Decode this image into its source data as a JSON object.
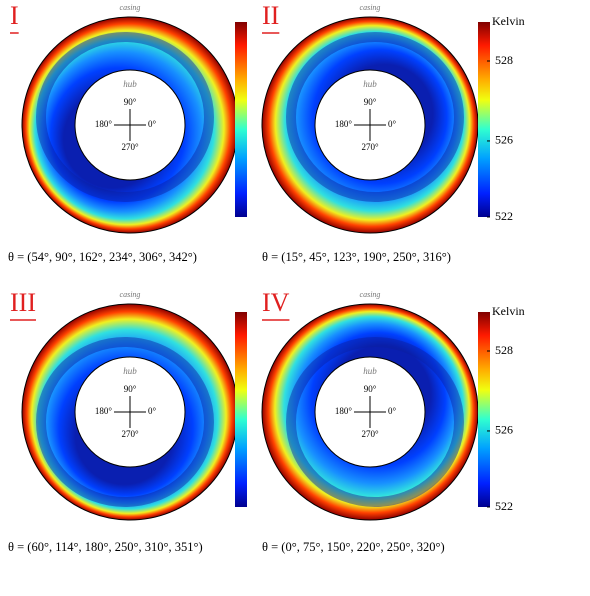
{
  "panels": [
    {
      "label": "I",
      "casing": "casing",
      "hub": "hub",
      "angles": [
        "90°",
        "180°",
        "0°",
        "270°"
      ],
      "caption": "θ = (54°, 90°, 162°, 234°, 306°, 342°)"
    },
    {
      "label": "II",
      "casing": "casing",
      "hub": "hub",
      "angles": [
        "90°",
        "180°",
        "0°",
        "270°"
      ],
      "caption": "θ = (15°, 45°, 123°, 190°, 250°, 316°)"
    },
    {
      "label": "III",
      "casing": "casing",
      "hub": "hub",
      "angles": [
        "90°",
        "180°",
        "0°",
        "270°"
      ],
      "caption": "θ = (60°, 114°, 180°, 250°, 310°, 351°)"
    },
    {
      "label": "IV",
      "casing": "casing",
      "hub": "hub",
      "angles": [
        "90°",
        "180°",
        "0°",
        "270°"
      ],
      "caption": "θ = (0°, 75°, 150°, 220°, 250°, 320°)"
    }
  ],
  "colorbar": {
    "unit": "Kelvin",
    "ticks": [
      "528",
      "526",
      "522"
    ]
  }
}
